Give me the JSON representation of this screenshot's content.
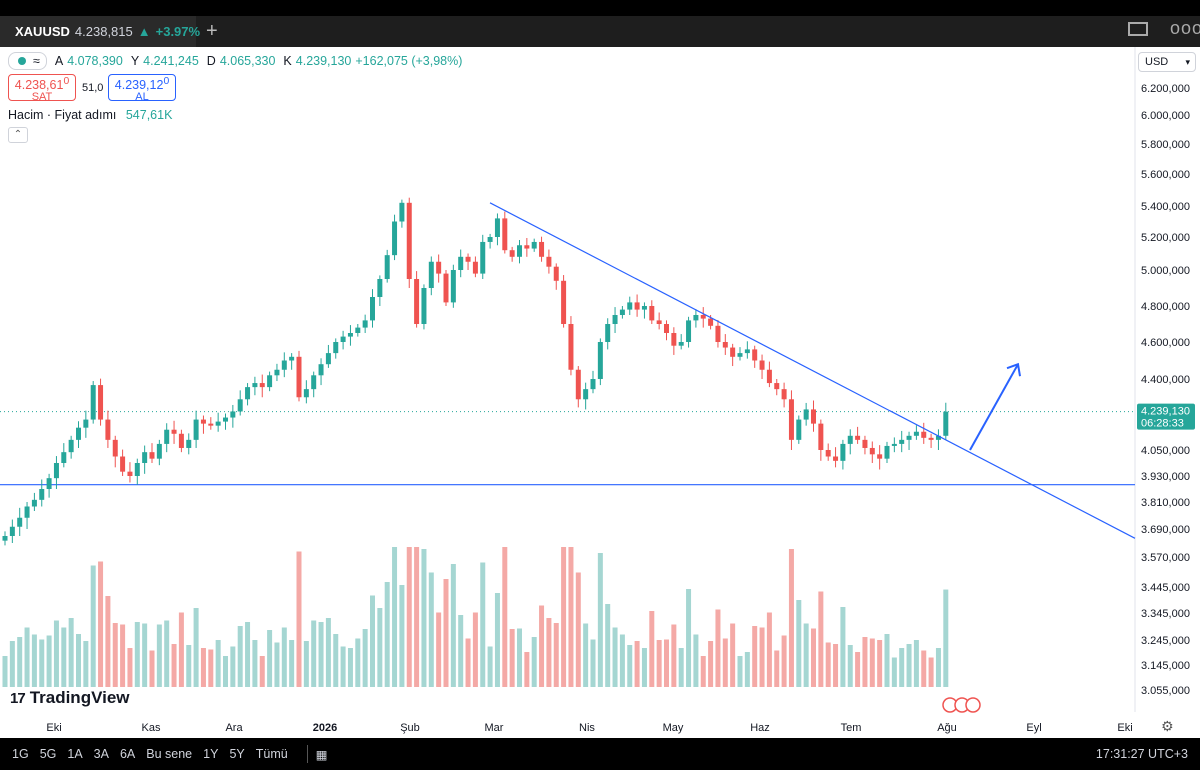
{
  "header": {
    "symbol": "XAUUSD",
    "price": "4.238,815",
    "change_arrow": "▲",
    "change_pct": "+3.97%",
    "new_tab": "+",
    "more": "ooo"
  },
  "legend": {
    "open_label": "A",
    "open": "4.078,390",
    "high_label": "Y",
    "high": "4.241,245",
    "low_label": "D",
    "low": "4.065,330",
    "close_label": "K",
    "close": "4.239,130",
    "change": "+162,075 (+3,98%)",
    "indicator_icon": "≈"
  },
  "trade": {
    "sell_price": "4.238,61",
    "sell_sup": "0",
    "sell_label": "SAT",
    "spread": "51,0",
    "buy_price": "4.239,12",
    "buy_sup": "0",
    "buy_label": "AL"
  },
  "volume_indicator": {
    "label": "Hacim · Fiyat adımı",
    "value": "547,61K"
  },
  "currency": "USD",
  "price_axis": {
    "labels": [
      "6.200,000",
      "6.000,000",
      "5.800,000",
      "5.600,000",
      "5.400,000",
      "5.200,000",
      "5.000,000",
      "4.800,000",
      "4.600,000",
      "4.400,000",
      "4.050,000",
      "3.930,000",
      "3.810,000",
      "3.690,000",
      "3.570,000",
      "3.445,000",
      "3.345,000",
      "3.245,000",
      "3.145,000",
      "3.055,000"
    ],
    "current_price": "4.239,130",
    "countdown": "06:28:33"
  },
  "time_axis": {
    "labels": [
      "Eki",
      "Kas",
      "Ara",
      "2026",
      "Şub",
      "Mar",
      "Nis",
      "May",
      "Haz",
      "Tem",
      "Ağu",
      "Eyl",
      "Eki"
    ]
  },
  "bottom": {
    "ranges": [
      "1G",
      "5G",
      "1A",
      "3A",
      "6A",
      "Bu sene",
      "1Y",
      "5Y",
      "Tümü"
    ],
    "clock": "17:31:27 UTC+3"
  },
  "branding": "TradingView",
  "colors": {
    "up": "#26a69a",
    "down": "#ef5350",
    "line": "#2962ff",
    "vol_up": "#a5d6d2",
    "vol_down": "#f4a9a6"
  },
  "chart_data": {
    "type": "candlestick",
    "symbol": "XAUUSD",
    "interval": "1D",
    "y_axis": {
      "labels": [
        6200,
        6000,
        5800,
        5600,
        5400,
        5200,
        5000,
        4800,
        4600,
        4400,
        4050,
        3930,
        3810,
        3690,
        3570,
        3445,
        3345,
        3245,
        3145,
        3055
      ]
    },
    "last_price": 4239.13,
    "support_level": 3890,
    "trendline": {
      "start": {
        "date": "2026-03-01",
        "price": 5420
      },
      "end": {
        "date": "2026-08-25",
        "price": 3650
      }
    },
    "projection_arrow": {
      "from_price": 4050,
      "to_price": 4480,
      "direction": "up"
    },
    "closes": [
      3660,
      3700,
      3740,
      3790,
      3820,
      3870,
      3920,
      3990,
      4040,
      4100,
      4160,
      4200,
      4370,
      4200,
      4100,
      4020,
      3950,
      3930,
      3990,
      4040,
      4010,
      4080,
      4150,
      4130,
      4060,
      4100,
      4200,
      4180,
      4170,
      4190,
      4210,
      4240,
      4300,
      4360,
      4380,
      4360,
      4420,
      4450,
      4500,
      4520,
      4310,
      4350,
      4420,
      4480,
      4540,
      4600,
      4630,
      4650,
      4680,
      4720,
      4850,
      4950,
      5090,
      5300,
      5420,
      4950,
      4700,
      4900,
      5050,
      4980,
      4820,
      5000,
      5080,
      5050,
      4980,
      5170,
      5200,
      5320,
      5120,
      5080,
      5150,
      5130,
      5170,
      5080,
      5020,
      4940,
      4700,
      4450,
      4300,
      4350,
      4400,
      4600,
      4700,
      4750,
      4780,
      4820,
      4780,
      4800,
      4720,
      4700,
      4650,
      4580,
      4600,
      4720,
      4750,
      4730,
      4690,
      4600,
      4570,
      4520,
      4540,
      4560,
      4500,
      4450,
      4380,
      4350,
      4300,
      4100,
      4200,
      4250,
      4180,
      4050,
      4020,
      4000,
      4080,
      4120,
      4100,
      4060,
      4030,
      4010,
      4070,
      4080,
      4100,
      4120,
      4140,
      4110,
      4100,
      4120,
      4239
    ]
  }
}
